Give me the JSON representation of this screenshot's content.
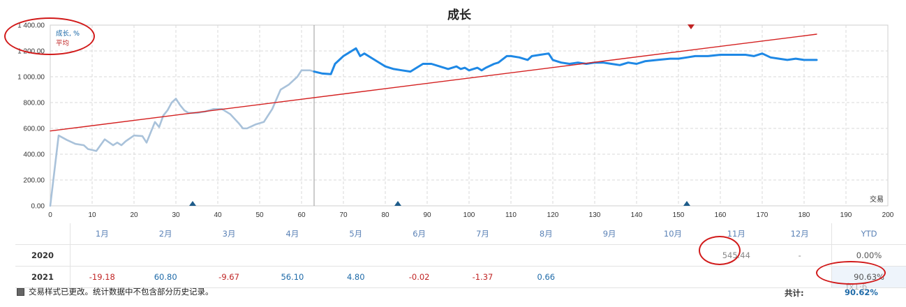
{
  "chart_data": {
    "type": "line",
    "title": "成长",
    "xlabel": "交易",
    "ylabel": "",
    "xlim": [
      0,
      200
    ],
    "ylim": [
      0,
      1400
    ],
    "x_ticks": [
      0,
      10,
      20,
      30,
      40,
      50,
      60,
      70,
      80,
      90,
      100,
      110,
      120,
      130,
      140,
      150,
      160,
      170,
      180,
      190,
      200
    ],
    "y_ticks": [
      "0.00",
      "200.00",
      "400.00",
      "600.00",
      "800.00",
      "1 000.00",
      "1 200.00",
      "1 400.00"
    ],
    "y_tick_values": [
      0,
      200,
      400,
      600,
      800,
      1000,
      1200,
      1400
    ],
    "grid": true,
    "legend_position": "top-left",
    "legend": [
      {
        "label": "成长, %",
        "color": "#1e6aa8"
      },
      {
        "label": "平均",
        "color": "#c02424"
      }
    ],
    "divider_x": 63,
    "series": [
      {
        "name": "成长, %",
        "color": "#a9c2da",
        "x": [
          0,
          2,
          4,
          6,
          8,
          9,
          11,
          13,
          15,
          16,
          17,
          18,
          20,
          22,
          23,
          25,
          26,
          27,
          28,
          29,
          30,
          31,
          32,
          33,
          35,
          37,
          39,
          41,
          43,
          45,
          46,
          47,
          49,
          51,
          53,
          55,
          57,
          59,
          60,
          62,
          63
        ],
        "y": [
          0,
          545,
          510,
          480,
          470,
          440,
          425,
          515,
          470,
          490,
          470,
          500,
          545,
          540,
          490,
          650,
          610,
          700,
          740,
          800,
          830,
          780,
          740,
          720,
          720,
          730,
          750,
          750,
          710,
          640,
          600,
          600,
          630,
          650,
          750,
          900,
          940,
          1000,
          1050,
          1050,
          1040
        ]
      },
      {
        "name": "成长, %",
        "color": "#1e88e5",
        "x": [
          63,
          65,
          67,
          68,
          70,
          71,
          73,
          74,
          75,
          77,
          79,
          80,
          82,
          84,
          86,
          87,
          89,
          91,
          93,
          95,
          97,
          98,
          99,
          100,
          102,
          103,
          104,
          106,
          107,
          109,
          110,
          112,
          114,
          115,
          117,
          119,
          120,
          122,
          124,
          126,
          128,
          130,
          132,
          134,
          136,
          138,
          140,
          142,
          145,
          148,
          150,
          152,
          154,
          157,
          160,
          163,
          166,
          168,
          170,
          172,
          174,
          176,
          178,
          180,
          182,
          183
        ],
        "y": [
          1040,
          1025,
          1020,
          1100,
          1160,
          1180,
          1220,
          1160,
          1180,
          1140,
          1100,
          1080,
          1060,
          1050,
          1040,
          1060,
          1100,
          1100,
          1080,
          1060,
          1080,
          1060,
          1070,
          1050,
          1070,
          1050,
          1070,
          1100,
          1110,
          1160,
          1160,
          1150,
          1130,
          1160,
          1170,
          1180,
          1130,
          1110,
          1100,
          1110,
          1100,
          1110,
          1110,
          1100,
          1090,
          1110,
          1100,
          1120,
          1130,
          1140,
          1140,
          1150,
          1160,
          1160,
          1170,
          1170,
          1170,
          1160,
          1180,
          1150,
          1140,
          1130,
          1140,
          1130,
          1130,
          1130
        ]
      },
      {
        "name": "平均",
        "color": "#d42020",
        "x": [
          0,
          183
        ],
        "y": [
          580,
          1330
        ]
      }
    ],
    "markers": [
      {
        "x": 34,
        "color": "#1e5c8a",
        "shape": "triangle-up",
        "edge": "bottom"
      },
      {
        "x": 83,
        "color": "#1e5c8a",
        "shape": "triangle-up",
        "edge": "bottom"
      },
      {
        "x": 152,
        "color": "#1e5c8a",
        "shape": "triangle-up",
        "edge": "bottom"
      },
      {
        "x": 153,
        "color": "#c02424",
        "shape": "triangle-down",
        "edge": "top"
      }
    ]
  },
  "table": {
    "headers": [
      "1月",
      "2月",
      "3月",
      "4月",
      "5月",
      "6月",
      "7月",
      "8月",
      "9月",
      "10月",
      "11月",
      "12月",
      "YTD"
    ],
    "rows": [
      {
        "year": "2020",
        "cells": [
          "",
          "",
          "",
          "",
          "",
          "",
          "",
          "",
          "",
          "",
          "545.44",
          "-"
        ],
        "ytd": "0.00%"
      },
      {
        "year": "2021",
        "cells": [
          "-19.18",
          "60.80",
          "-9.67",
          "56.10",
          "4.80",
          "-0.02",
          "-1.37",
          "0.66",
          "",
          "",
          "",
          ""
        ],
        "ytd": "90.63%"
      }
    ],
    "colors": {
      "pos": "#1e6aa8",
      "neg": "#c02424"
    }
  },
  "footer": {
    "note": "交易样式已更改。统计数据中不包含部分历史记录。",
    "total_label": "共计:",
    "total_value": "90.62%"
  },
  "watermark": "fx1·6",
  "annotation_color": "#d11a1a"
}
